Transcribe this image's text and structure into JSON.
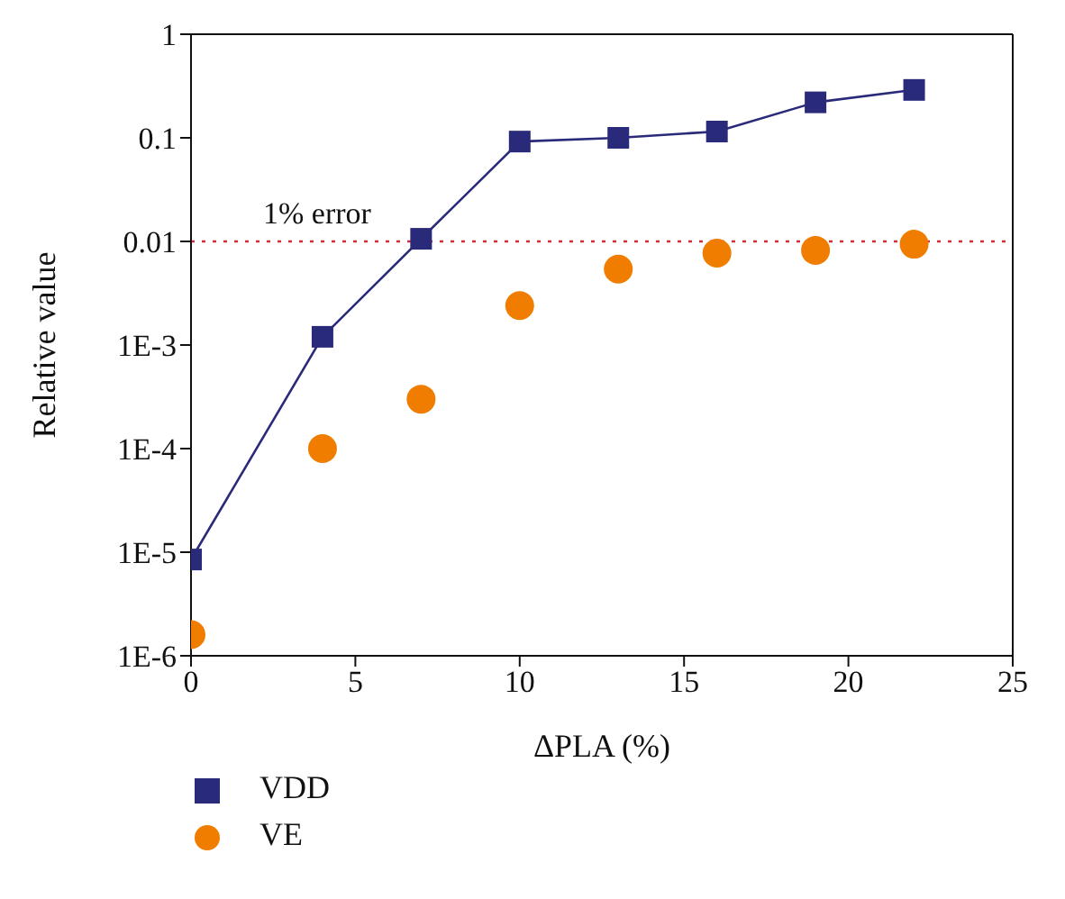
{
  "chart_data": {
    "type": "line",
    "xlabel": "ΔPLA (%)",
    "ylabel": "Relative value",
    "log": "y",
    "grid": false,
    "legend": "bottom",
    "xlim": [
      0,
      25
    ],
    "xticks": [
      0,
      5,
      10,
      15,
      20,
      25
    ],
    "ylim": [
      1e-06,
      1
    ],
    "yticks": [
      {
        "value": 1e-06,
        "label": "1E-6"
      },
      {
        "value": 1e-05,
        "label": "1E-5"
      },
      {
        "value": 0.0001,
        "label": "1E-4"
      },
      {
        "value": 0.001,
        "label": "1E-3"
      },
      0.01,
      0.1,
      1
    ],
    "x": [
      0,
      4,
      7,
      10,
      13,
      16,
      19,
      22
    ],
    "series": [
      {
        "name": "VDD",
        "marker": "square",
        "color": "#2a2a7a",
        "values": [
          8.5e-06,
          0.0012,
          0.0106,
          0.092,
          0.1,
          0.115,
          0.22,
          0.29
        ]
      },
      {
        "name": "VE",
        "type": "scatter",
        "marker": "circle",
        "color": "#f07d00",
        "values": [
          1.6e-06,
          0.0001,
          0.0003,
          0.0024,
          0.0054,
          0.0077,
          0.0082,
          0.0094
        ]
      }
    ],
    "ref_lines": [
      {
        "axis": "y",
        "value": 0.01,
        "label": "1% error",
        "color": "#d0303a",
        "line_style": "dotted"
      }
    ]
  }
}
